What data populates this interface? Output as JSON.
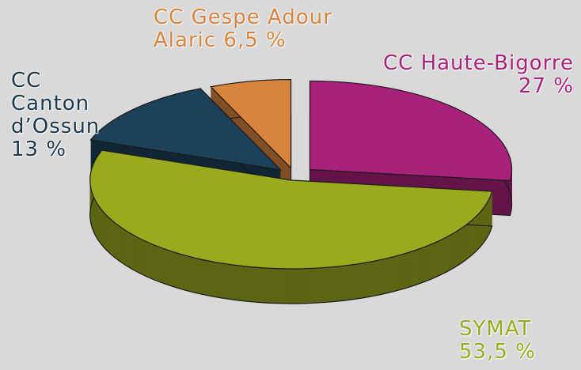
{
  "chart_data": {
    "type": "pie",
    "categories": [
      "CC Haute-Bigorre",
      "SYMAT",
      "CC Canton d’Ossun",
      "CC Gespe Adour Alaric"
    ],
    "values": [
      27,
      53.5,
      13,
      6.5
    ],
    "value_labels": [
      "27 %",
      "53,5 %",
      "13 %",
      "6,5 %"
    ],
    "colors": [
      "#a8217a",
      "#9aaa1e",
      "#1d4159",
      "#d9843c"
    ]
  }
}
